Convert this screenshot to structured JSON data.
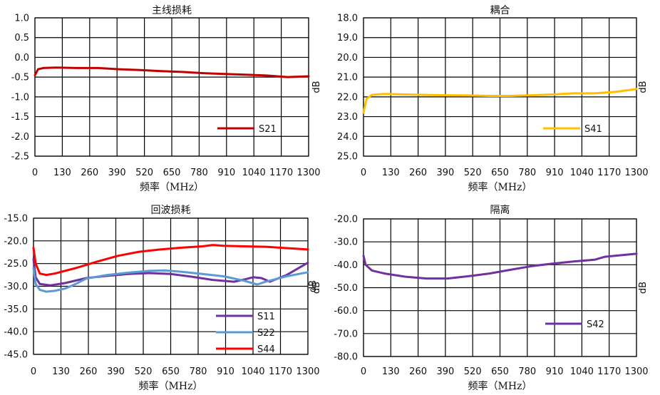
{
  "chart_data": [
    {
      "type": "line",
      "title": "主线损耗",
      "xlabel": "频率（MHz）",
      "ylabel": "",
      "xlim": [
        0,
        1300
      ],
      "ylim": [
        -2.5,
        1.0
      ],
      "xticks": [
        0,
        130,
        260,
        390,
        520,
        650,
        780,
        910,
        1040,
        1170,
        1300
      ],
      "yticks": [
        "1.0",
        "0.5",
        "0.0",
        "-0.5",
        "-1.0",
        "-1.5",
        "-2.0",
        "-2.5"
      ],
      "grid": true,
      "legend": "bottom-right",
      "series": [
        {
          "name": "S21",
          "color": "#c00000",
          "points": [
            [
              0,
              -0.45
            ],
            [
              15,
              -0.3
            ],
            [
              40,
              -0.27
            ],
            [
              100,
              -0.26
            ],
            [
              200,
              -0.27
            ],
            [
              300,
              -0.27
            ],
            [
              400,
              -0.3
            ],
            [
              500,
              -0.32
            ],
            [
              600,
              -0.35
            ],
            [
              700,
              -0.37
            ],
            [
              800,
              -0.4
            ],
            [
              900,
              -0.42
            ],
            [
              1000,
              -0.44
            ],
            [
              1100,
              -0.46
            ],
            [
              1200,
              -0.5
            ],
            [
              1300,
              -0.48
            ]
          ]
        }
      ]
    },
    {
      "type": "line",
      "title": "耦合",
      "xlabel": "频率（MHz）",
      "ylabel": "dB",
      "xlim": [
        0,
        1300
      ],
      "ylim": [
        -25.0,
        -18.0
      ],
      "xticks": [
        0,
        130,
        260,
        390,
        520,
        650,
        780,
        910,
        1040,
        1170,
        1300
      ],
      "yticks": [
        "18.0",
        "19.0",
        "20.0",
        "21.0",
        "22.0",
        "23.0",
        "24.0",
        "25.0"
      ],
      "grid": true,
      "legend": "bottom-right",
      "series": [
        {
          "name": "S41",
          "color": "#ffc000",
          "points": [
            [
              0,
              -22.8
            ],
            [
              15,
              -22.1
            ],
            [
              40,
              -21.9
            ],
            [
              100,
              -21.85
            ],
            [
              200,
              -21.88
            ],
            [
              300,
              -21.9
            ],
            [
              400,
              -21.92
            ],
            [
              500,
              -21.93
            ],
            [
              600,
              -21.95
            ],
            [
              700,
              -21.95
            ],
            [
              800,
              -21.92
            ],
            [
              900,
              -21.88
            ],
            [
              1000,
              -21.82
            ],
            [
              1100,
              -21.82
            ],
            [
              1200,
              -21.75
            ],
            [
              1300,
              -21.6
            ]
          ]
        }
      ]
    },
    {
      "type": "line",
      "title": "回波损耗",
      "xlabel": "频率（MHz）",
      "ylabel": "dB",
      "xlim": [
        0,
        1300
      ],
      "ylim": [
        -45.0,
        -15.0
      ],
      "xticks": [
        0,
        130,
        260,
        390,
        520,
        650,
        780,
        910,
        1040,
        1170,
        1300
      ],
      "yticks": [
        "-15.0",
        "-20.0",
        "-25.0",
        "-30.0",
        "-35.0",
        "-40.0",
        "-45.0"
      ],
      "grid": true,
      "legend": "bottom-right",
      "series": [
        {
          "name": "S11",
          "color": "#7030a0",
          "points": [
            [
              0,
              -24
            ],
            [
              10,
              -28
            ],
            [
              30,
              -29.5
            ],
            [
              80,
              -29.8
            ],
            [
              150,
              -29.3
            ],
            [
              250,
              -28.2
            ],
            [
              350,
              -27.7
            ],
            [
              450,
              -27.3
            ],
            [
              550,
              -27.1
            ],
            [
              650,
              -27.3
            ],
            [
              750,
              -27.9
            ],
            [
              850,
              -28.6
            ],
            [
              950,
              -29.0
            ],
            [
              1000,
              -28.5
            ],
            [
              1040,
              -28.0
            ],
            [
              1080,
              -28.2
            ],
            [
              1120,
              -29.0
            ],
            [
              1200,
              -27.5
            ],
            [
              1300,
              -24.8
            ]
          ]
        },
        {
          "name": "S22",
          "color": "#5b9bd5",
          "points": [
            [
              0,
              -26
            ],
            [
              10,
              -29.5
            ],
            [
              30,
              -30.8
            ],
            [
              60,
              -31.2
            ],
            [
              100,
              -31
            ],
            [
              150,
              -30.5
            ],
            [
              200,
              -29.5
            ],
            [
              250,
              -28.3
            ],
            [
              350,
              -27.5
            ],
            [
              450,
              -27.0
            ],
            [
              550,
              -26.6
            ],
            [
              620,
              -26.5
            ],
            [
              700,
              -26.8
            ],
            [
              800,
              -27.3
            ],
            [
              900,
              -27.8
            ],
            [
              1000,
              -28.8
            ],
            [
              1060,
              -29.6
            ],
            [
              1100,
              -29.0
            ],
            [
              1200,
              -27.8
            ],
            [
              1300,
              -26.9
            ]
          ]
        },
        {
          "name": "S44",
          "color": "#ff0000",
          "points": [
            [
              0,
              -21.5
            ],
            [
              10,
              -25
            ],
            [
              30,
              -27.2
            ],
            [
              60,
              -27.5
            ],
            [
              100,
              -27.2
            ],
            [
              200,
              -26
            ],
            [
              300,
              -24.6
            ],
            [
              400,
              -23.3
            ],
            [
              500,
              -22.4
            ],
            [
              600,
              -21.9
            ],
            [
              700,
              -21.5
            ],
            [
              800,
              -21.2
            ],
            [
              850,
              -20.9
            ],
            [
              900,
              -21.1
            ],
            [
              1000,
              -21.2
            ],
            [
              1100,
              -21.3
            ],
            [
              1200,
              -21.6
            ],
            [
              1300,
              -21.9
            ]
          ]
        }
      ]
    },
    {
      "type": "line",
      "title": "隔离",
      "xlabel": "频率（MHz）",
      "ylabel": "dB",
      "xlim": [
        0,
        1300
      ],
      "ylim": [
        -80.0,
        -20.0
      ],
      "xticks": [
        0,
        130,
        260,
        390,
        520,
        650,
        780,
        910,
        1040,
        1170,
        1300
      ],
      "yticks": [
        "-20.0",
        "-30.0",
        "-40.0",
        "-50.0",
        "-60.0",
        "-70.0",
        "-80.0"
      ],
      "grid": true,
      "legend": "bottom-right",
      "series": [
        {
          "name": "S42",
          "color": "#7030a0",
          "points": [
            [
              0,
              -36
            ],
            [
              10,
              -40
            ],
            [
              40,
              -42.5
            ],
            [
              100,
              -43.8
            ],
            [
              200,
              -45.2
            ],
            [
              300,
              -46
            ],
            [
              400,
              -46
            ],
            [
              500,
              -45
            ],
            [
              600,
              -43.8
            ],
            [
              700,
              -42.2
            ],
            [
              800,
              -40.6
            ],
            [
              900,
              -39.5
            ],
            [
              1000,
              -38.6
            ],
            [
              1100,
              -37.8
            ],
            [
              1150,
              -36.5
            ],
            [
              1250,
              -35.6
            ],
            [
              1300,
              -35.2
            ]
          ]
        }
      ]
    }
  ]
}
